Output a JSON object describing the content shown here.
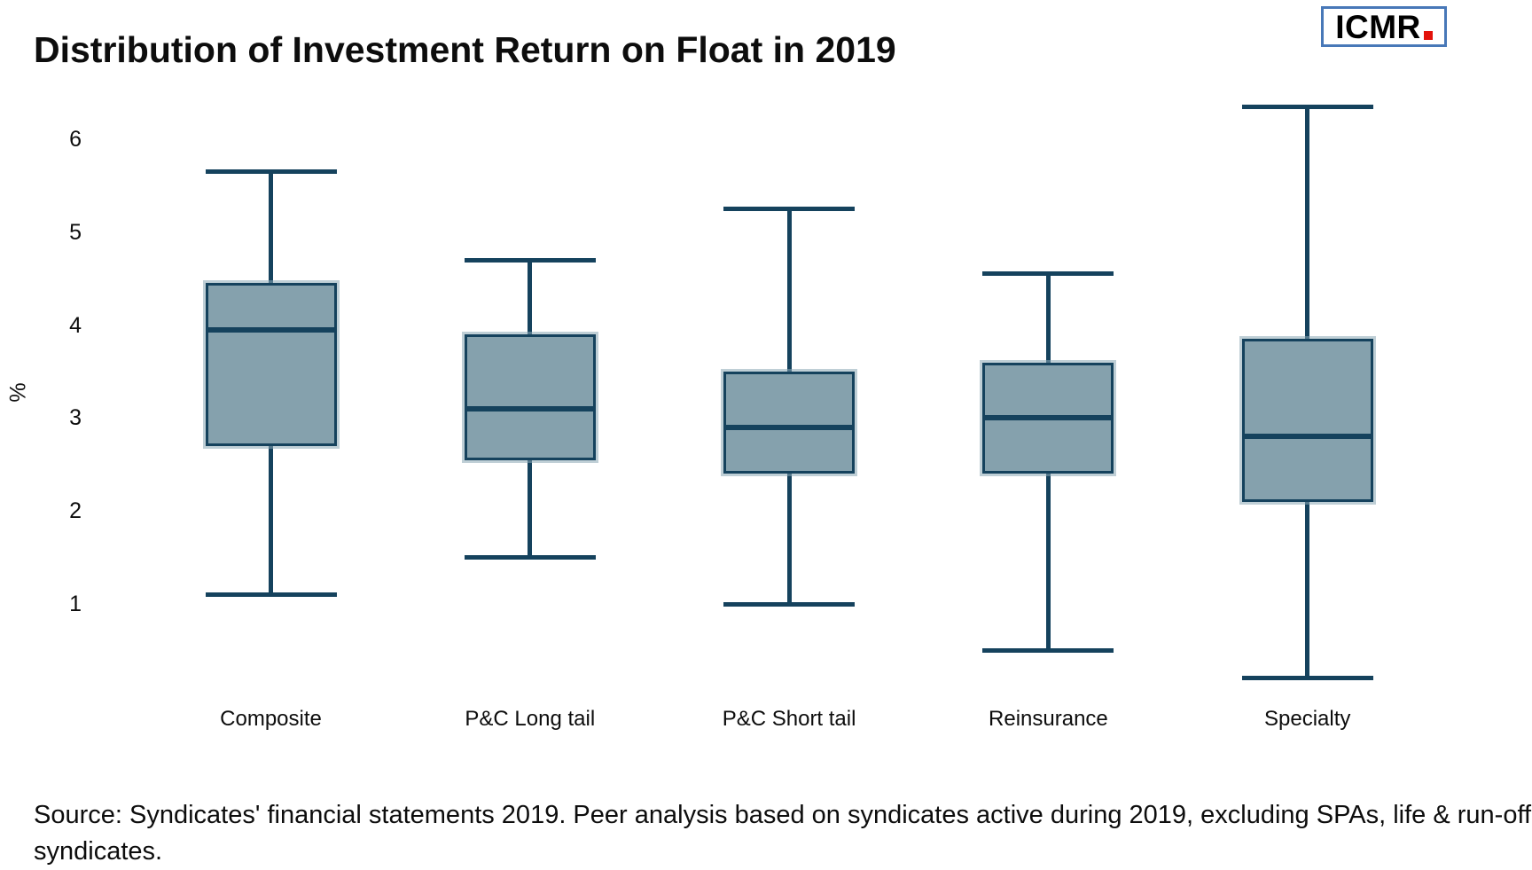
{
  "title": "Distribution of Investment Return on Float in 2019",
  "logo": {
    "text": "ICMR"
  },
  "source_note": "Source: Syndicates' financial statements 2019. Peer analysis based on syndicates active during 2019, excluding SPAs, life & run-off syndicates.",
  "chart_data": {
    "type": "box",
    "title": "Distribution of Investment Return on Float in 2019",
    "xlabel": "",
    "ylabel": "%",
    "yticks": [
      1,
      2,
      3,
      4,
      5,
      6
    ],
    "ylim": [
      0,
      6.6
    ],
    "grid": false,
    "legend": "none",
    "categories": [
      "Composite",
      "P&C Long tail",
      "P&C Short tail",
      "Reinsurance",
      "Specialty"
    ],
    "series": [
      {
        "name": "Composite",
        "min": 1.1,
        "q1": 2.7,
        "median": 3.95,
        "q3": 4.45,
        "max": 5.65
      },
      {
        "name": "P&C Long tail",
        "min": 1.5,
        "q1": 2.55,
        "median": 3.1,
        "q3": 3.9,
        "max": 4.7
      },
      {
        "name": "P&C Short tail",
        "min": 1.0,
        "q1": 2.4,
        "median": 2.9,
        "q3": 3.5,
        "max": 5.25
      },
      {
        "name": "Reinsurance",
        "min": 0.5,
        "q1": 2.4,
        "median": 3.0,
        "q3": 3.6,
        "max": 4.55
      },
      {
        "name": "Specialty",
        "min": 0.2,
        "q1": 2.1,
        "median": 2.8,
        "q3": 3.85,
        "max": 6.35
      }
    ],
    "colors": {
      "line": "#15425d",
      "box_fill": "#85a1ad",
      "box_halo": "rgba(138,167,180,0.55)",
      "logo_border": "#4878b8",
      "logo_dot": "#e3120b",
      "text": "#0d0d0d"
    }
  }
}
